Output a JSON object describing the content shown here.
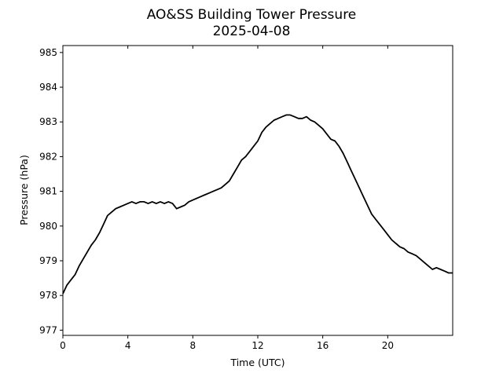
{
  "chart_data": {
    "type": "line",
    "title": "AO&SS Building Tower Pressure",
    "subtitle": "2025-04-08",
    "xlabel": "Time (UTC)",
    "ylabel": "Pressure (hPa)",
    "xlim": [
      0,
      24
    ],
    "ylim": [
      976.85,
      985.2
    ],
    "x_ticks": [
      0,
      4,
      8,
      12,
      16,
      20
    ],
    "y_ticks": [
      977,
      978,
      979,
      980,
      981,
      982,
      983,
      984,
      985
    ],
    "grid": false,
    "line_color": "#000000",
    "series": [
      {
        "x": [
          0,
          0.25,
          0.5,
          0.75,
          1.0,
          1.25,
          1.5,
          1.75,
          2.0,
          2.25,
          2.5,
          2.75,
          3.0,
          3.25,
          3.5,
          3.75,
          4.0,
          4.25,
          4.5,
          4.75,
          5.0,
          5.25,
          5.5,
          5.75,
          6.0,
          6.25,
          6.5,
          6.75,
          7.0,
          7.25,
          7.5,
          7.75,
          8.0,
          8.25,
          8.5,
          8.75,
          9.0,
          9.25,
          9.5,
          9.75,
          10.0,
          10.25,
          10.5,
          10.75,
          11.0,
          11.25,
          11.5,
          11.75,
          12.0,
          12.25,
          12.5,
          12.75,
          13.0,
          13.25,
          13.5,
          13.75,
          14.0,
          14.25,
          14.5,
          14.75,
          15.0,
          15.25,
          15.5,
          15.75,
          16.0,
          16.25,
          16.5,
          16.75,
          17.0,
          17.25,
          17.5,
          17.75,
          18.0,
          18.25,
          18.5,
          18.75,
          19.0,
          19.25,
          19.5,
          19.75,
          20.0,
          20.25,
          20.5,
          20.75,
          21.0,
          21.25,
          21.5,
          21.75,
          22.0,
          22.25,
          22.5,
          22.75,
          23.0,
          23.25,
          23.5,
          23.75,
          24.0
        ],
        "values": [
          978.05,
          978.3,
          978.45,
          978.6,
          978.85,
          979.05,
          979.25,
          979.45,
          979.6,
          979.8,
          980.05,
          980.3,
          980.4,
          980.5,
          980.55,
          980.6,
          980.65,
          980.7,
          980.65,
          980.7,
          980.7,
          980.65,
          980.7,
          980.65,
          980.7,
          980.65,
          980.7,
          980.65,
          980.5,
          980.55,
          980.6,
          980.7,
          980.75,
          980.8,
          980.85,
          980.9,
          980.95,
          981.0,
          981.05,
          981.1,
          981.2,
          981.3,
          981.5,
          981.7,
          981.9,
          982.0,
          982.15,
          982.3,
          982.45,
          982.7,
          982.85,
          982.95,
          983.05,
          983.1,
          983.15,
          983.2,
          983.2,
          983.15,
          983.1,
          983.1,
          983.15,
          983.05,
          983.0,
          982.9,
          982.8,
          982.65,
          982.5,
          982.45,
          982.3,
          982.1,
          981.85,
          981.6,
          981.35,
          981.1,
          980.85,
          980.6,
          980.35,
          980.2,
          980.05,
          979.9,
          979.75,
          979.6,
          979.5,
          979.4,
          979.35,
          979.25,
          979.2,
          979.15,
          979.05,
          978.95,
          978.85,
          978.75,
          978.8,
          978.75,
          978.7,
          978.65,
          978.65
        ]
      }
    ]
  }
}
